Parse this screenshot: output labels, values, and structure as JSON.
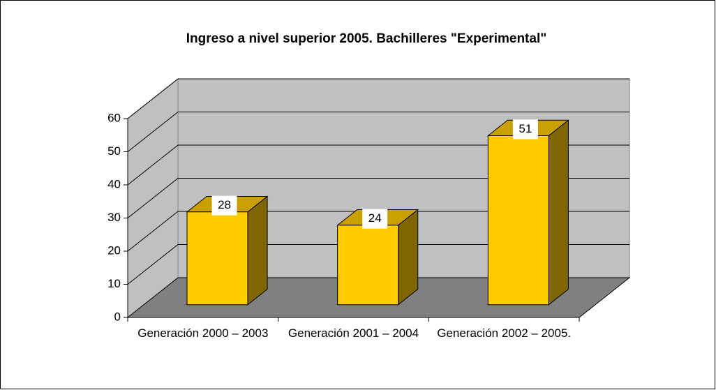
{
  "chart_data": {
    "type": "bar3d",
    "title": "Ingreso a nivel superior 2005. Bachilleres \"Experimental\"",
    "categories": [
      "Generación 2000 – 2003",
      "Generación 2001 – 2004",
      "Generación 2002 – 2005."
    ],
    "values": [
      28,
      24,
      51
    ],
    "color": "#ffcc00",
    "ylim": [
      0,
      60
    ],
    "yticks": [
      0,
      10,
      20,
      30,
      40,
      50,
      60
    ],
    "grid": true
  }
}
